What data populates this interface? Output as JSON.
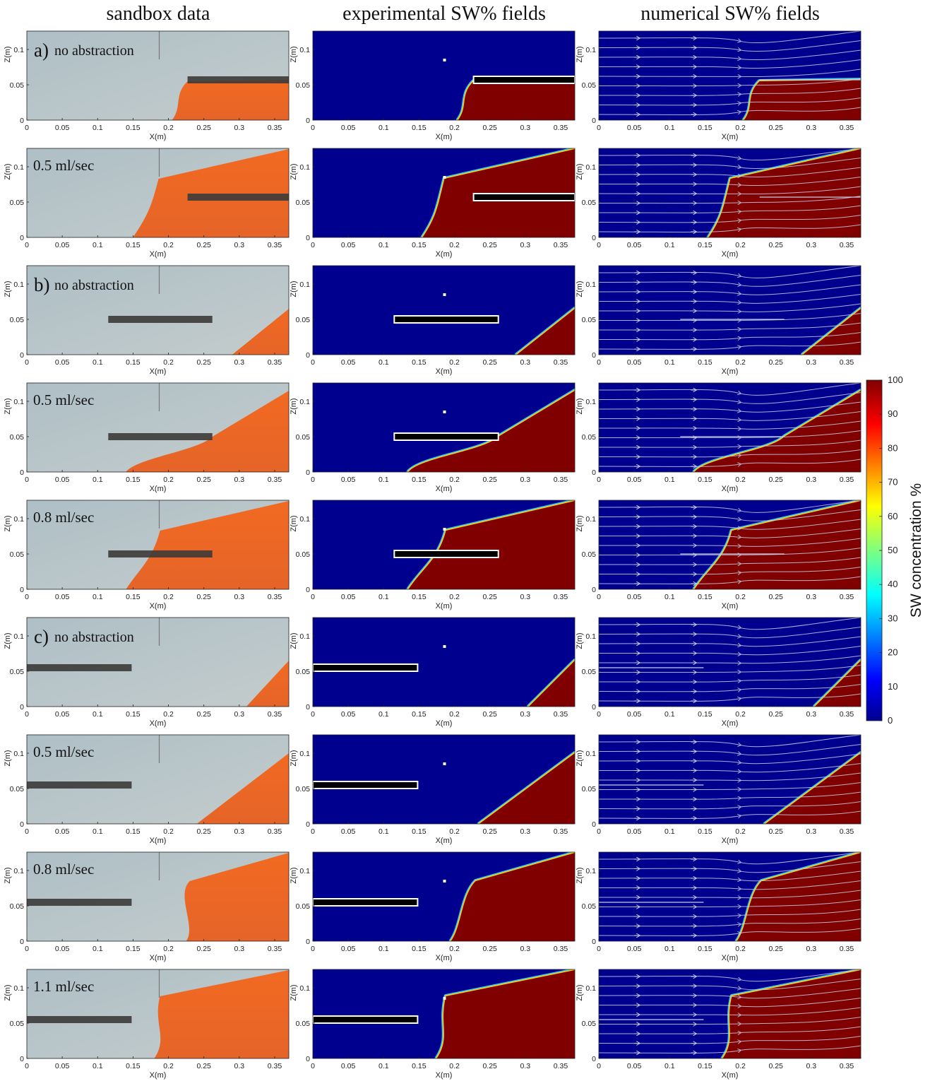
{
  "columns": {
    "sandbox": "sandbox data",
    "experimental": "experimental SW% fields",
    "numerical": "numerical SW% fields"
  },
  "axes": {
    "xlabel": "X(m)",
    "ylabel": "Z(m)",
    "x_ticks": [
      "0",
      "0.05",
      "0.1",
      "0.15",
      "0.2",
      "0.25",
      "0.3",
      "0.35"
    ],
    "y_ticks": [
      "0",
      "0.05",
      "0.1"
    ]
  },
  "colorbar": {
    "title": "SW concentration %",
    "ticks": [
      "0",
      "10",
      "20",
      "30",
      "40",
      "50",
      "60",
      "70",
      "80",
      "90",
      "100"
    ]
  },
  "colors": {
    "freshwater_photo": "#b8c7cc",
    "saltwater_photo": "#ec6a26",
    "freshwater_field": "#00008f",
    "saltwater_field": "#800000",
    "streamline": "#c8cde6"
  },
  "chart_data": [
    {
      "type": "heatmap",
      "panel_label": "a)",
      "condition": "no abstraction",
      "well_x": [
        0.227,
        0.37
      ],
      "well_z": 0.057,
      "toe_x": 0.205,
      "tip": [
        0.227,
        0.055
      ],
      "wedge_top_z": 0.057,
      "pump": false,
      "photo_left_x": 0.205
    },
    {
      "type": "heatmap",
      "panel_label": "",
      "condition": "0.5 ml/sec",
      "well_x": [
        0.227,
        0.37
      ],
      "well_z": 0.057,
      "toe_x": 0.155,
      "tip": [
        0.186,
        0.083
      ],
      "wedge_top_z": 0.125,
      "pump": true,
      "photo_left_x": 0.15
    },
    {
      "type": "heatmap",
      "panel_label": "b)",
      "condition": "no abstraction",
      "well_x": [
        0.115,
        0.262
      ],
      "well_z": 0.05,
      "toe_x": 0.288,
      "tip": [
        0.37,
        0.065
      ],
      "wedge_top_z": 0.065,
      "pump": false,
      "photo_left_x": 0.29
    },
    {
      "type": "heatmap",
      "panel_label": "",
      "condition": "0.5 ml/sec",
      "well_x": [
        0.115,
        0.262
      ],
      "well_z": 0.05,
      "toe_x": 0.135,
      "tip": [
        0.262,
        0.05
      ],
      "wedge_top_z": 0.115,
      "pump": false,
      "photo_left_x": 0.14
    },
    {
      "type": "heatmap",
      "panel_label": "",
      "condition": "0.8 ml/sec",
      "well_x": [
        0.115,
        0.262
      ],
      "well_z": 0.05,
      "toe_x": 0.135,
      "tip": [
        0.188,
        0.083
      ],
      "wedge_top_z": 0.125,
      "pump": true,
      "photo_left_x": 0.14
    },
    {
      "type": "heatmap",
      "panel_label": "c)",
      "condition": "no abstraction",
      "well_x": [
        0.0,
        0.148
      ],
      "well_z": 0.055,
      "toe_x": 0.305,
      "tip": [
        0.37,
        0.065
      ],
      "wedge_top_z": 0.065,
      "pump": false,
      "photo_left_x": 0.31
    },
    {
      "type": "heatmap",
      "panel_label": "",
      "condition": "0.5 ml/sec",
      "well_x": [
        0.0,
        0.148
      ],
      "well_z": 0.055,
      "toe_x": 0.235,
      "tip": [
        0.37,
        0.1
      ],
      "wedge_top_z": 0.1,
      "pump": false,
      "photo_left_x": 0.24
    },
    {
      "type": "heatmap",
      "panel_label": "",
      "condition": "0.8 ml/sec",
      "well_x": [
        0.0,
        0.148
      ],
      "well_z": 0.055,
      "toe_x": 0.195,
      "tip": [
        0.23,
        0.085
      ],
      "wedge_top_z": 0.125,
      "pump": false,
      "photo_left_x": 0.225
    },
    {
      "type": "heatmap",
      "panel_label": "",
      "condition": "1.1 ml/sec",
      "well_x": [
        0.0,
        0.148
      ],
      "well_z": 0.055,
      "toe_x": 0.175,
      "tip": [
        0.188,
        0.088
      ],
      "wedge_top_z": 0.125,
      "pump": true,
      "photo_left_x": 0.18
    }
  ]
}
